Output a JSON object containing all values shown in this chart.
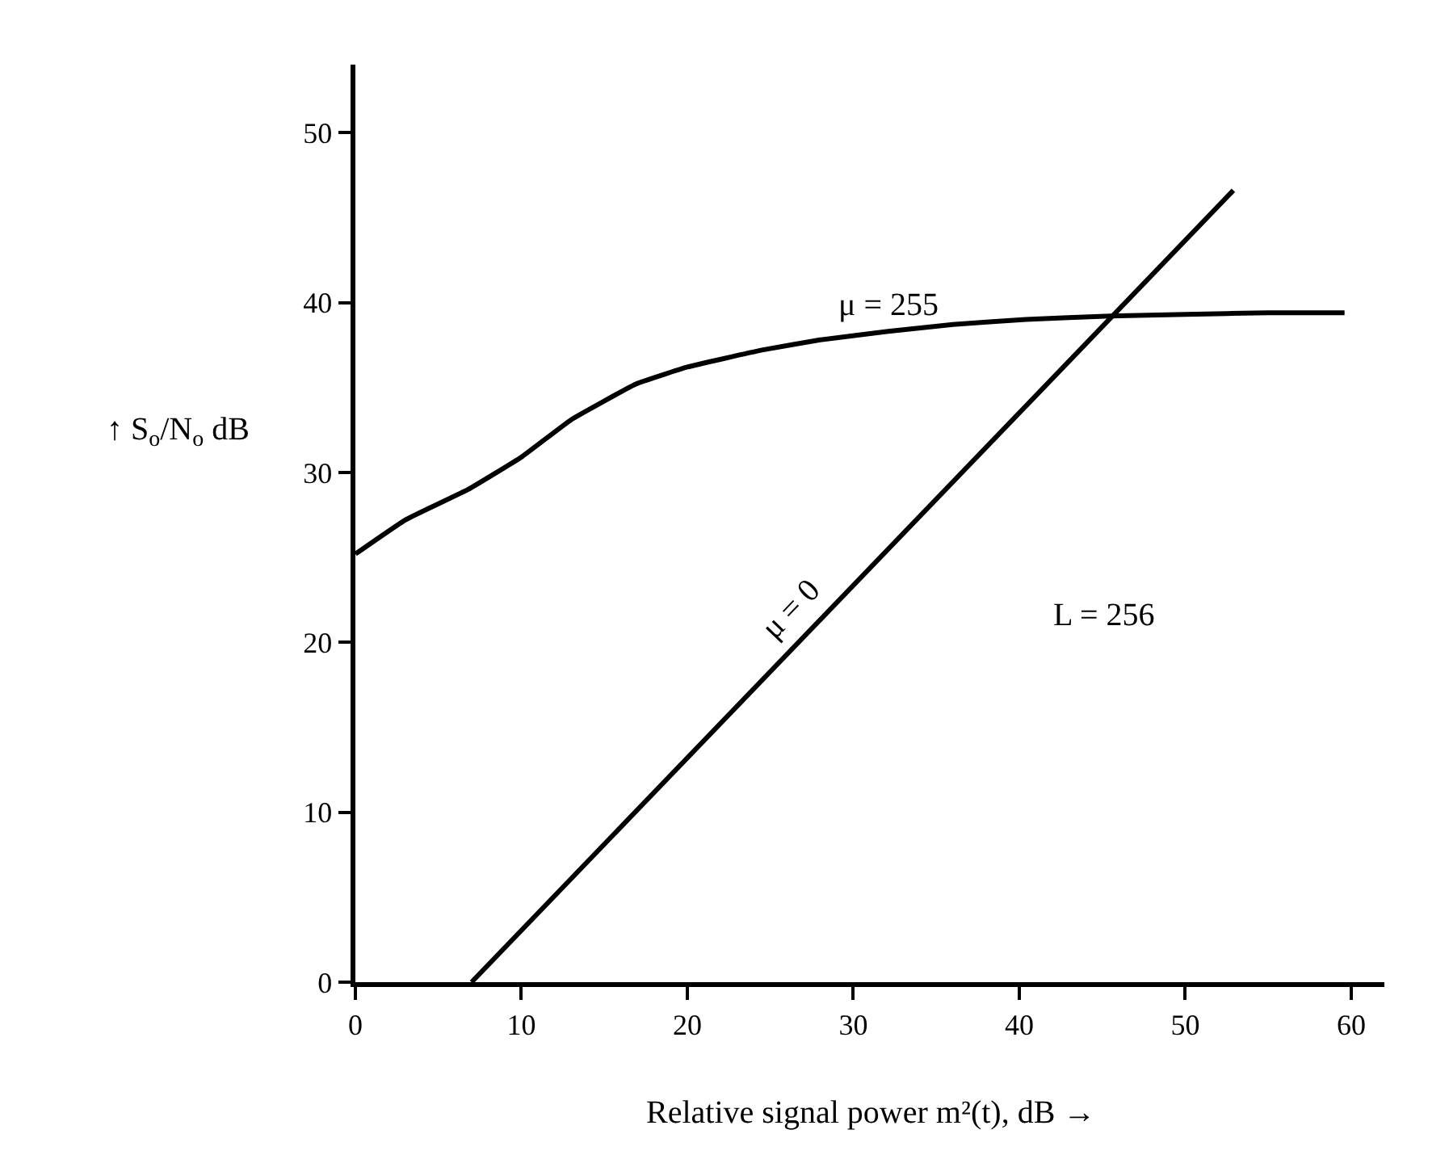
{
  "chart_data": {
    "type": "line",
    "xlabel": "Relative signal power m²(t), dB →",
    "ylabel": "↑ S$_{o}$/N$_{o}$ dB",
    "series": [
      {
        "name": "μ = 255",
        "color": "#000000",
        "x": [
          0,
          3,
          6.8,
          10,
          13,
          16.9,
          20,
          24.5,
          28,
          32.1,
          36,
          40.4,
          45.5,
          50,
          55,
          59.6
        ],
        "values": [
          25.2,
          27.2,
          29,
          30.9,
          33.1,
          35.2,
          36.2,
          37.2,
          37.8,
          38.3,
          38.7,
          39,
          39.2,
          39.3,
          39.4,
          39.4
        ]
      },
      {
        "name": "μ = 0",
        "color": "#000000",
        "x": [
          7,
          52.9
        ],
        "values": [
          0,
          46.6
        ]
      }
    ],
    "annotations": [
      "L = 256"
    ],
    "xlim": [
      0,
      62
    ],
    "ylim": [
      0,
      54
    ],
    "xticks": [
      0,
      10,
      20,
      30,
      40,
      50,
      60
    ],
    "yticks": [
      0,
      10,
      20,
      30,
      40,
      50
    ],
    "grid": false,
    "legend": false,
    "marker": "none",
    "line_style": "solid"
  }
}
